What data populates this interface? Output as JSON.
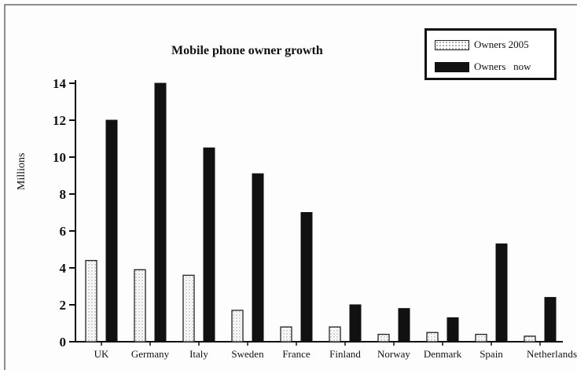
{
  "chart_data": {
    "type": "bar",
    "title": "Mobile phone owner growth",
    "xlabel": "",
    "ylabel": "Millions",
    "ylim": [
      0,
      14
    ],
    "yticks": [
      0,
      2,
      4,
      6,
      8,
      10,
      12,
      14
    ],
    "categories": [
      "UK",
      "Germany",
      "Italy",
      "Sweden",
      "France",
      "Finland",
      "Norway",
      "Denmark",
      "Spain",
      "Netherlands"
    ],
    "category_labels": [
      "UK",
      "Germany",
      "Italy",
      "Sweden",
      "France",
      "Finland",
      "Norway",
      "Denmark",
      "Spain",
      "Netherlands"
    ],
    "series": [
      {
        "name": "Owners 2005",
        "values": [
          4.4,
          3.9,
          3.6,
          1.7,
          0.8,
          0.8,
          0.4,
          0.5,
          0.4,
          0.3
        ],
        "color": "#ffffff",
        "pattern": "dotted"
      },
      {
        "name": "Owners   now",
        "values": [
          12.0,
          14.0,
          10.5,
          9.1,
          7.0,
          2.0,
          1.8,
          1.3,
          5.3,
          2.4
        ],
        "color": "#111111"
      }
    ],
    "legend_position": "top-right",
    "grid": false
  }
}
